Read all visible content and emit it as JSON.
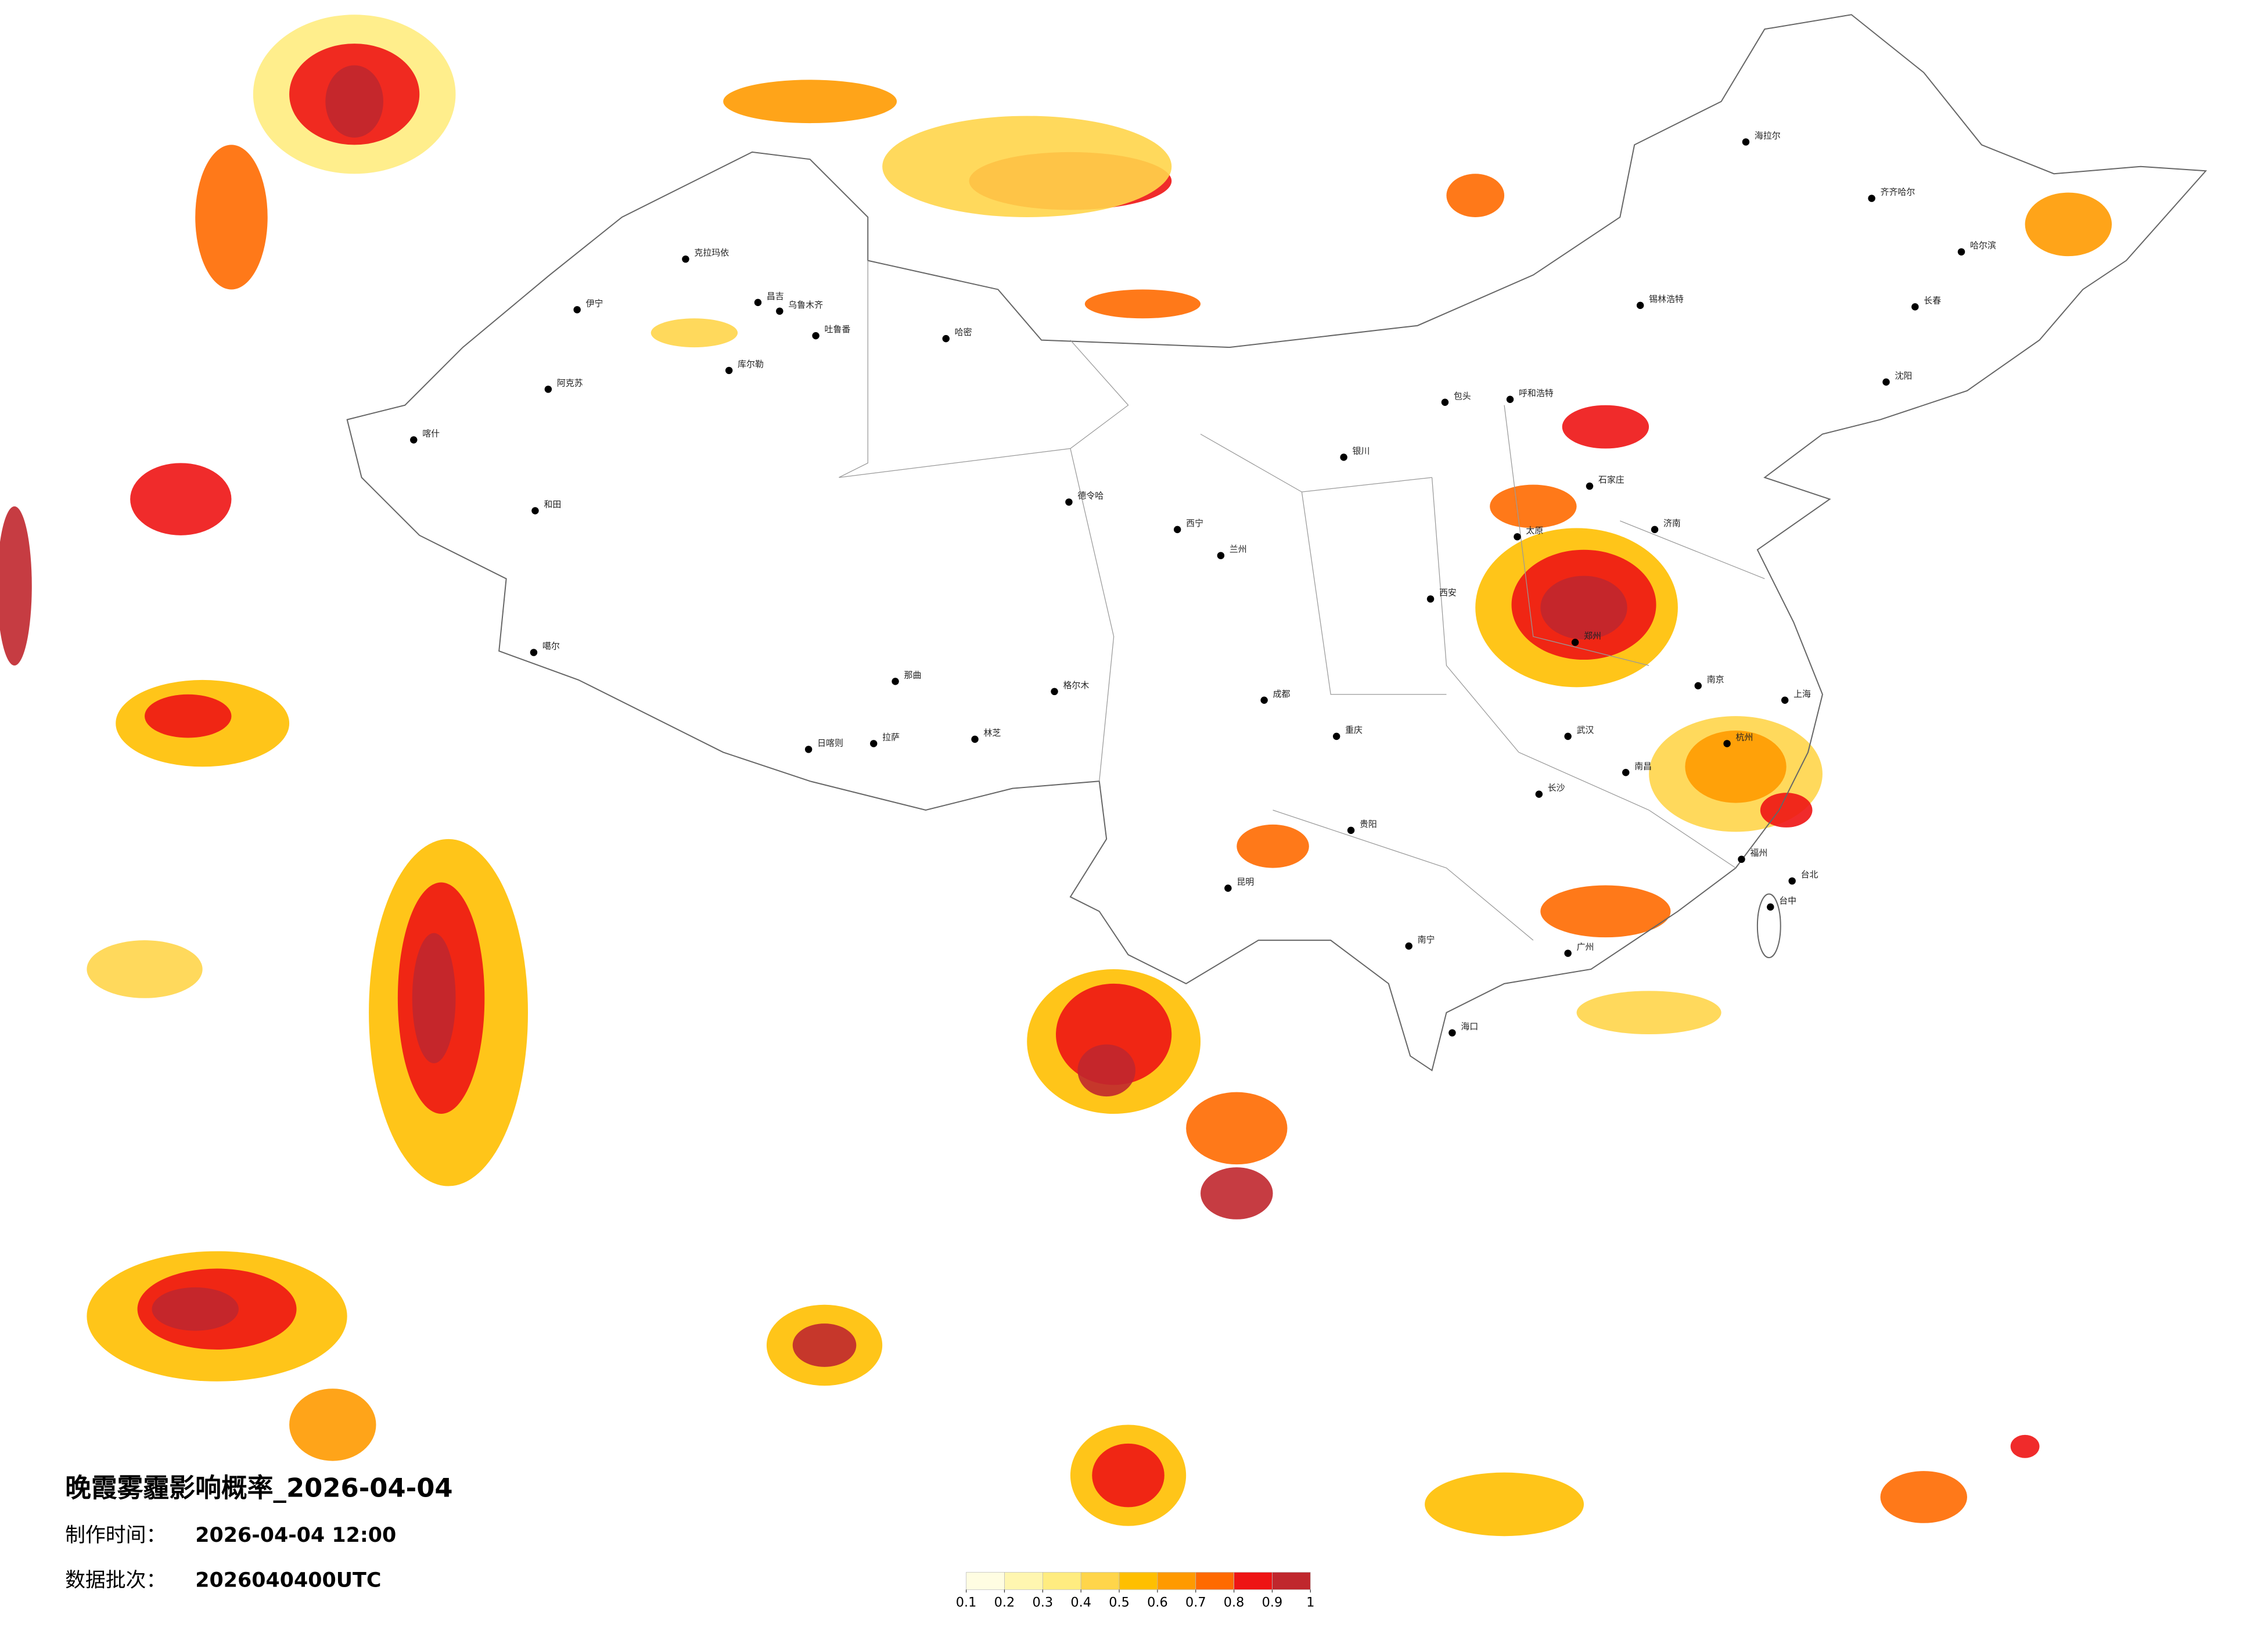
{
  "map": {
    "title": "晚霞雾霾影响概率_2026-04-04",
    "info": [
      {
        "label": "制作时间：",
        "value": "2026-04-04 12:00"
      },
      {
        "label": "数据批次：",
        "value": "2026040400UTC"
      }
    ],
    "colorbar": {
      "ticks": [
        0.1,
        0.2,
        0.3,
        0.4,
        0.5,
        0.6,
        0.7,
        0.8,
        0.9,
        1
      ],
      "colors": [
        "#fffde2",
        "#fff6b0",
        "#ffec80",
        "#ffd54a",
        "#ffbf00",
        "#ff9a00",
        "#ff6a00",
        "#ee1414",
        "#c0272d"
      ]
    },
    "cities": [
      "克拉玛依",
      "伊宁",
      "昌吉",
      "乌鲁木齐",
      "吐鲁番",
      "哈密",
      "库尔勒",
      "阿克苏",
      "喀什",
      "和田",
      "噶尔",
      "日喀则",
      "拉萨",
      "林芝",
      "那曲",
      "格尔木",
      "德令哈",
      "西宁",
      "兰州",
      "银川",
      "呼和浩特",
      "包头",
      "哈尔滨",
      "长春",
      "沈阳",
      "齐齐哈尔",
      "海拉尔",
      "锡林浩特",
      "太原",
      "郑州",
      "西安",
      "成都",
      "重庆",
      "贵阳",
      "昆明",
      "南宁",
      "广州",
      "福州",
      "杭州",
      "南京",
      "上海",
      "武汉",
      "长沙",
      "南昌",
      "台北",
      "台中",
      "海口",
      "济南",
      "石家庄"
    ]
  }
}
